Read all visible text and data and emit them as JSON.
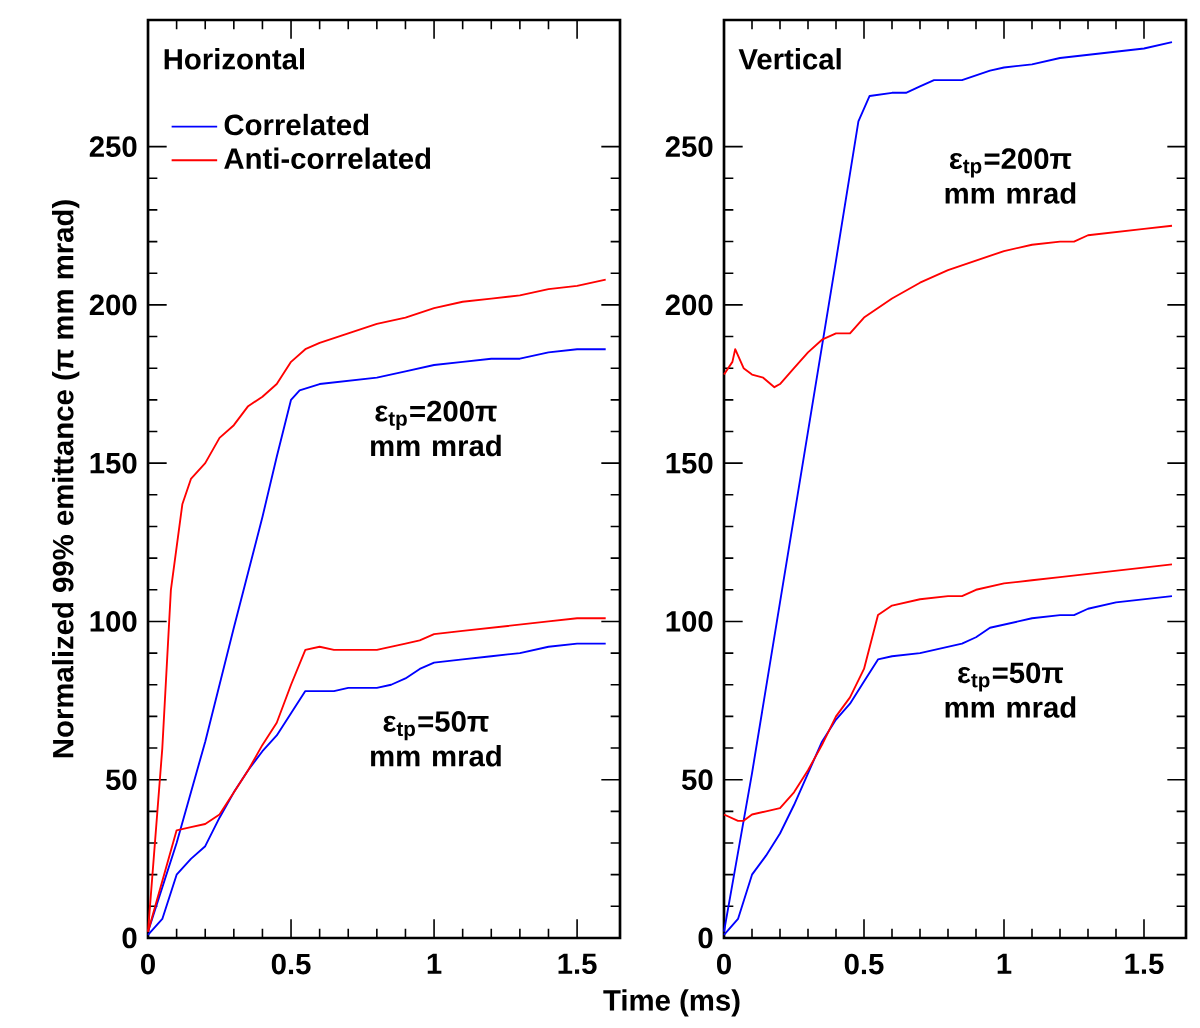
{
  "chart_data": [
    {
      "type": "line",
      "title": "Horizontal",
      "xlabel": "Time (ms)",
      "ylabel": "Normalized 99% emittance (π mm mrad)",
      "xlim": [
        0,
        1.65
      ],
      "ylim": [
        0,
        290
      ],
      "xticks": [
        0,
        0.5,
        1,
        1.5
      ],
      "yticks": [
        0,
        50,
        100,
        150,
        200,
        250
      ],
      "legend": "top left",
      "series": [
        {
          "name": "Correlated",
          "color": "#0000ff",
          "x": [
            0,
            0.1,
            0.2,
            0.3,
            0.4,
            0.45,
            0.5,
            0.53,
            0.6,
            0.7,
            0.8,
            0.9,
            1.0,
            1.1,
            1.2,
            1.3,
            1.4,
            1.5,
            1.6
          ],
          "values": [
            2,
            30,
            62,
            98,
            133,
            152,
            170,
            173,
            175,
            176,
            177,
            179,
            181,
            182,
            183,
            183,
            185,
            186,
            186
          ]
        },
        {
          "name": "Anti-correlated",
          "color": "#ff0000",
          "x": [
            0,
            0.05,
            0.08,
            0.12,
            0.15,
            0.2,
            0.25,
            0.3,
            0.35,
            0.4,
            0.45,
            0.5,
            0.55,
            0.6,
            0.7,
            0.8,
            0.9,
            1.0,
            1.1,
            1.2,
            1.3,
            1.4,
            1.5,
            1.6
          ],
          "values": [
            2,
            60,
            110,
            137,
            145,
            150,
            158,
            162,
            168,
            171,
            175,
            182,
            186,
            188,
            191,
            194,
            196,
            199,
            201,
            202,
            203,
            205,
            206,
            208
          ]
        },
        {
          "color": "#0000ff",
          "x": [
            0,
            0.05,
            0.1,
            0.15,
            0.2,
            0.25,
            0.3,
            0.35,
            0.4,
            0.45,
            0.5,
            0.55,
            0.6,
            0.65,
            0.7,
            0.8,
            0.85,
            0.9,
            0.95,
            1.0,
            1.1,
            1.2,
            1.3,
            1.4,
            1.5,
            1.6
          ],
          "values": [
            1,
            6,
            20,
            25,
            29,
            38,
            46,
            53,
            59,
            64,
            71,
            78,
            78,
            78,
            79,
            79,
            80,
            82,
            85,
            87,
            88,
            89,
            90,
            92,
            93,
            93
          ]
        },
        {
          "color": "#ff0000",
          "x": [
            0,
            0.05,
            0.1,
            0.15,
            0.2,
            0.25,
            0.3,
            0.35,
            0.4,
            0.45,
            0.5,
            0.55,
            0.6,
            0.65,
            0.7,
            0.8,
            0.9,
            0.95,
            1.0,
            1.1,
            1.2,
            1.3,
            1.4,
            1.5,
            1.6
          ],
          "values": [
            2,
            18,
            34,
            35,
            36,
            39,
            46,
            53,
            61,
            68,
            80,
            91,
            92,
            91,
            91,
            91,
            93,
            94,
            96,
            97,
            98,
            99,
            100,
            101,
            101
          ]
        }
      ],
      "annotations": [
        "ε$_{tp}$=200π mm mrad",
        "ε$_{tp}$=50π mm mrad"
      ]
    },
    {
      "type": "line",
      "title": "Vertical",
      "xlim": [
        0,
        1.65
      ],
      "ylim": [
        0,
        290
      ],
      "xticks": [
        0,
        0.5,
        1,
        1.5
      ],
      "yticks": [
        0,
        50,
        100,
        150,
        200,
        250
      ],
      "series": [
        {
          "color": "#0000ff",
          "x": [
            0,
            0.1,
            0.2,
            0.3,
            0.4,
            0.48,
            0.52,
            0.6,
            0.65,
            0.7,
            0.75,
            0.85,
            0.95,
            1.0,
            1.1,
            1.2,
            1.3,
            1.4,
            1.5,
            1.6
          ],
          "values": [
            2,
            52,
            106,
            160,
            214,
            258,
            266,
            267,
            267,
            269,
            271,
            271,
            274,
            275,
            276,
            278,
            279,
            280,
            281,
            283
          ]
        },
        {
          "color": "#ff0000",
          "x": [
            0,
            0.03,
            0.04,
            0.07,
            0.1,
            0.14,
            0.18,
            0.2,
            0.25,
            0.3,
            0.35,
            0.4,
            0.45,
            0.5,
            0.55,
            0.6,
            0.7,
            0.8,
            0.9,
            1.0,
            1.1,
            1.2,
            1.25,
            1.3,
            1.4,
            1.5,
            1.6
          ],
          "values": [
            178,
            182,
            186,
            180,
            178,
            177,
            174,
            175,
            180,
            185,
            189,
            191,
            191,
            196,
            199,
            202,
            207,
            211,
            214,
            217,
            219,
            220,
            220,
            222,
            223,
            224,
            225
          ]
        },
        {
          "color": "#0000ff",
          "x": [
            0,
            0.05,
            0.1,
            0.15,
            0.2,
            0.25,
            0.3,
            0.35,
            0.4,
            0.45,
            0.5,
            0.55,
            0.6,
            0.7,
            0.8,
            0.85,
            0.9,
            0.95,
            1.0,
            1.1,
            1.2,
            1.25,
            1.3,
            1.4,
            1.5,
            1.6
          ],
          "values": [
            1,
            6,
            20,
            26,
            33,
            42,
            52,
            62,
            69,
            74,
            81,
            88,
            89,
            90,
            92,
            93,
            95,
            98,
            99,
            101,
            102,
            102,
            104,
            106,
            107,
            108
          ]
        },
        {
          "color": "#ff0000",
          "x": [
            0,
            0.05,
            0.07,
            0.1,
            0.15,
            0.2,
            0.25,
            0.3,
            0.35,
            0.4,
            0.45,
            0.5,
            0.55,
            0.6,
            0.7,
            0.8,
            0.85,
            0.9,
            1.0,
            1.1,
            1.2,
            1.3,
            1.4,
            1.5,
            1.6
          ],
          "values": [
            39,
            37,
            37,
            39,
            40,
            41,
            46,
            53,
            61,
            70,
            76,
            85,
            102,
            105,
            107,
            108,
            108,
            110,
            112,
            113,
            114,
            115,
            116,
            117,
            118
          ]
        }
      ],
      "annotations": [
        "ε$_{tp}$=200π mm mrad",
        "ε$_{tp}$=50π mm mrad"
      ]
    }
  ]
}
